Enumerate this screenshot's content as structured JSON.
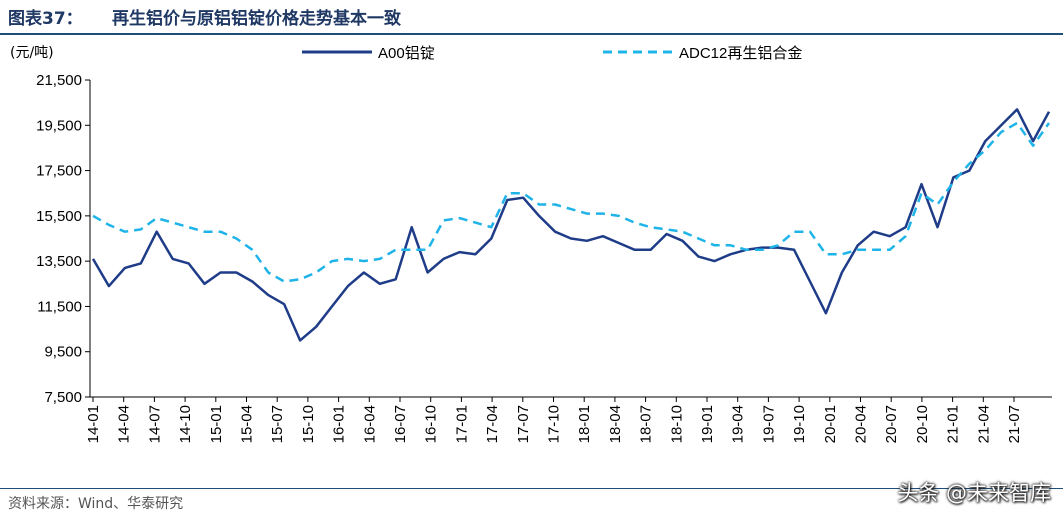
{
  "header": {
    "figure_label": "图表37：",
    "figure_title": "再生铝价与原铝铝锭价格走势基本一致"
  },
  "footer": {
    "source": "资料来源：Wind、华泰研究",
    "watermark": "头条 @未来智库"
  },
  "chart_data": {
    "type": "line",
    "unit_label": "(元/吨)",
    "title": "",
    "xlabel": "",
    "ylabel": "",
    "ylim": [
      7500,
      21500
    ],
    "y_ticks": [
      7500,
      9500,
      11500,
      13500,
      15500,
      17500,
      19500,
      21500
    ],
    "y_tick_labels": [
      "7,500",
      "9,500",
      "11,500",
      "13,500",
      "15,500",
      "17,500",
      "19,500",
      "21,500"
    ],
    "x_tick_labels": [
      "14-01",
      "14-04",
      "14-07",
      "14-10",
      "15-01",
      "15-04",
      "15-07",
      "15-10",
      "16-01",
      "16-04",
      "16-07",
      "16-10",
      "17-01",
      "17-04",
      "17-07",
      "17-10",
      "18-01",
      "18-04",
      "18-07",
      "18-10",
      "19-01",
      "19-04",
      "19-07",
      "19-10",
      "20-01",
      "20-04",
      "20-07",
      "20-10",
      "21-01",
      "21-04",
      "21-07"
    ],
    "grid": false,
    "legend_position": "top",
    "series": [
      {
        "name": "A00铝锭",
        "color": "#1f3c88",
        "style": "solid",
        "values": [
          13600,
          12400,
          13200,
          13400,
          14800,
          13600,
          13400,
          12500,
          13000,
          13000,
          12600,
          12000,
          11600,
          10000,
          10600,
          11500,
          12400,
          13000,
          12500,
          12700,
          15000,
          13000,
          13600,
          13900,
          13800,
          14500,
          16200,
          16300,
          15500,
          14800,
          14500,
          14400,
          14600,
          14300,
          14000,
          14000,
          14700,
          14400,
          13700,
          13500,
          13800,
          14000,
          14100,
          14100,
          14000,
          12600,
          11200,
          13000,
          14200,
          14800,
          14600,
          15000,
          16900,
          15000,
          17200,
          17500,
          18800,
          19500,
          20200,
          18800,
          20100
        ]
      },
      {
        "name": "ADC12再生铝合金",
        "color": "#1fb4e8",
        "style": "dashed",
        "values": [
          15500,
          15100,
          14800,
          14900,
          15400,
          15200,
          15000,
          14800,
          14800,
          14500,
          14000,
          13000,
          12600,
          12700,
          13000,
          13500,
          13600,
          13500,
          13600,
          14000,
          14000,
          14000,
          15300,
          15400,
          15200,
          15000,
          16500,
          16500,
          16000,
          16000,
          15800,
          15600,
          15600,
          15500,
          15200,
          15000,
          14900,
          14800,
          14500,
          14200,
          14200,
          14000,
          14000,
          14200,
          14800,
          14800,
          13800,
          13800,
          14000,
          14000,
          14000,
          14600,
          16500,
          16000,
          17000,
          17800,
          18400,
          19200,
          19600,
          18600,
          19600
        ]
      }
    ]
  }
}
